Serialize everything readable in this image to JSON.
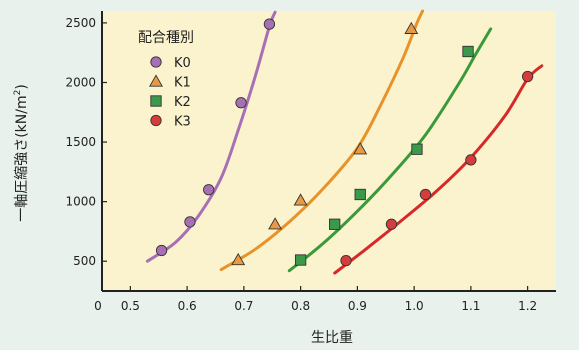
{
  "chart_data": {
    "type": "line",
    "title": "",
    "xlabel": "生比重",
    "ylabel": "一軸圧縮強さ(kN/m²)",
    "ylabel_main": "一軸圧縮強さ(kN/m",
    "ylabel_sup": "2",
    "ylabel_close": ")",
    "xlim": [
      0.45,
      1.25
    ],
    "ylim": [
      250,
      2600
    ],
    "origin_label": "0",
    "x_ticks": [
      0.5,
      0.6,
      0.7,
      0.8,
      0.9,
      1.0,
      1.1,
      1.2
    ],
    "x_tick_labels": [
      "0.5",
      "0.6",
      "0.7",
      "0.8",
      "0.9",
      "1.0",
      "1.1",
      "1.2"
    ],
    "y_ticks": [
      500,
      1000,
      1500,
      2000,
      2500
    ],
    "y_tick_labels": [
      "500",
      "1000",
      "1500",
      "2000",
      "2500"
    ],
    "grid": false,
    "legend_title": "配合種別",
    "legend_position": "top-left",
    "plot_background": "#fbf3cd",
    "series": [
      {
        "name": "K0",
        "marker": "circle",
        "color": "#a870b4",
        "line_color": "#a870b4",
        "points": [
          [
            0.555,
            590
          ],
          [
            0.605,
            830
          ],
          [
            0.638,
            1100
          ],
          [
            0.695,
            1830
          ],
          [
            0.745,
            2490
          ]
        ],
        "curve": [
          [
            0.53,
            500
          ],
          [
            0.58,
            660
          ],
          [
            0.62,
            880
          ],
          [
            0.66,
            1200
          ],
          [
            0.69,
            1600
          ],
          [
            0.72,
            2050
          ],
          [
            0.745,
            2470
          ],
          [
            0.755,
            2590
          ]
        ]
      },
      {
        "name": "K1",
        "marker": "triangle",
        "color": "#e79a45",
        "line_color": "#e8922a",
        "points": [
          [
            0.69,
            510
          ],
          [
            0.755,
            810
          ],
          [
            0.8,
            1010
          ],
          [
            0.905,
            1440
          ],
          [
            0.995,
            2450
          ]
        ],
        "curve": [
          [
            0.66,
            430
          ],
          [
            0.72,
            600
          ],
          [
            0.78,
            830
          ],
          [
            0.84,
            1110
          ],
          [
            0.9,
            1450
          ],
          [
            0.94,
            1800
          ],
          [
            0.98,
            2200
          ],
          [
            1.005,
            2500
          ],
          [
            1.015,
            2600
          ]
        ]
      },
      {
        "name": "K2",
        "marker": "square",
        "color": "#3b9a4a",
        "line_color": "#3a9a3a",
        "points": [
          [
            0.8,
            510
          ],
          [
            0.86,
            810
          ],
          [
            0.905,
            1060
          ],
          [
            1.005,
            1440
          ],
          [
            1.095,
            2260
          ]
        ],
        "curve": [
          [
            0.78,
            420
          ],
          [
            0.84,
            650
          ],
          [
            0.9,
            920
          ],
          [
            0.96,
            1220
          ],
          [
            1.02,
            1560
          ],
          [
            1.08,
            2000
          ],
          [
            1.11,
            2250
          ],
          [
            1.135,
            2450
          ]
        ]
      },
      {
        "name": "K3",
        "marker": "circle",
        "color": "#d63c3c",
        "line_color": "#d42a2a",
        "points": [
          [
            0.88,
            505
          ],
          [
            0.96,
            810
          ],
          [
            1.02,
            1060
          ],
          [
            1.1,
            1350
          ],
          [
            1.2,
            2050
          ]
        ],
        "curve": [
          [
            0.86,
            400
          ],
          [
            0.92,
            620
          ],
          [
            0.98,
            850
          ],
          [
            1.04,
            1090
          ],
          [
            1.1,
            1370
          ],
          [
            1.16,
            1720
          ],
          [
            1.2,
            2030
          ],
          [
            1.225,
            2140
          ]
        ]
      }
    ]
  }
}
